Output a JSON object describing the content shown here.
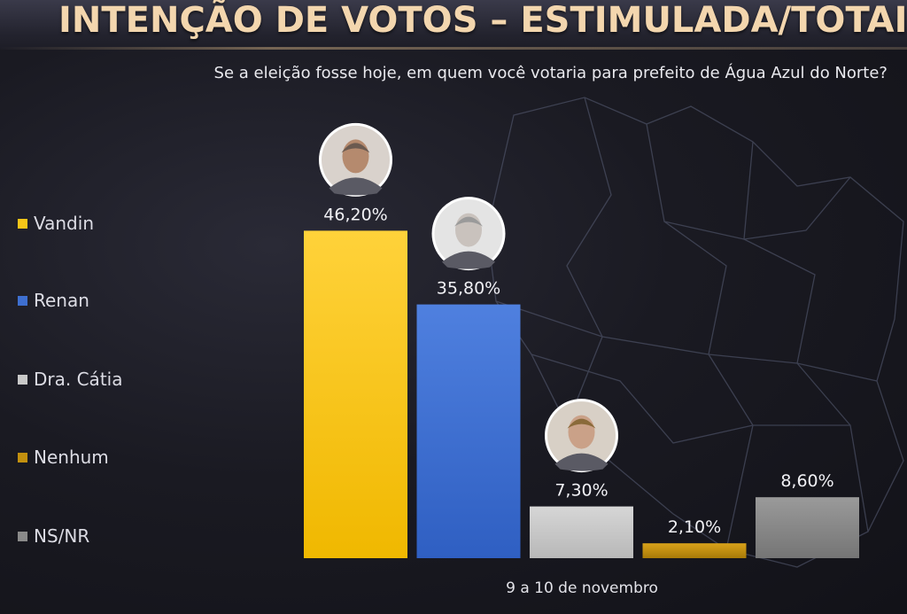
{
  "chart_data": {
    "type": "bar",
    "title": "INTENÇÃO DE VOTOS – ESTIMULADA/TOTAIS*",
    "subtitle": "Se a eleição fosse hoje, em quem você votaria para prefeito de Água Azul do Norte?",
    "categories": [
      "Vandin",
      "Renan",
      "Dra. Cátia",
      "Nenhum",
      "NS/NR"
    ],
    "values": [
      46.2,
      35.8,
      7.3,
      2.1,
      8.6
    ],
    "value_labels": [
      "46,20%",
      "35,80%",
      "7,30%",
      "2,10%",
      "8,60%"
    ],
    "colors": [
      "#f5c518",
      "#3e6fd0",
      "#c9c9c9",
      "#c2900f",
      "#8a8a8a"
    ],
    "unit": "%",
    "ylim": [
      0,
      50
    ],
    "grid": false,
    "legend_position": "left",
    "footnote": "9 a 10 de novembro"
  },
  "icons": [
    "candidate-photo-vandin",
    "candidate-photo-renan",
    "candidate-photo-catia"
  ]
}
